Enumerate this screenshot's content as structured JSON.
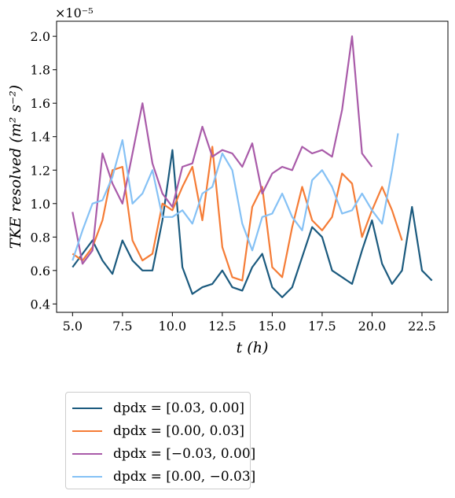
{
  "chart_data": {
    "type": "line",
    "title": "",
    "xlabel": "t (h)",
    "ylabel": "TKE resolved (m² s⁻²)",
    "y_multiplier_label": "×10⁻⁵",
    "xlim": [
      4.2,
      23.8
    ],
    "ylim": [
      0.35,
      2.09
    ],
    "xticks": [
      "5.0",
      "7.5",
      "10.0",
      "12.5",
      "15.0",
      "17.5",
      "20.0",
      "22.5"
    ],
    "yticks": [
      "0.4",
      "0.6",
      "0.8",
      "1.0",
      "1.2",
      "1.4",
      "1.6",
      "1.8",
      "2.0"
    ],
    "grid": false,
    "legend_placement": "below",
    "series": [
      {
        "name": "dpdx = [0.03, 0.00]",
        "color": "#1b5a7e",
        "x": [
          5.0,
          5.5,
          6.0,
          6.5,
          7.0,
          7.5,
          8.0,
          8.5,
          9.0,
          9.5,
          10.0,
          10.5,
          11.0,
          11.5,
          12.0,
          12.5,
          13.0,
          13.5,
          14.0,
          14.5,
          15.0,
          15.5,
          16.0,
          16.5,
          17.0,
          17.5,
          18.0,
          18.5,
          19.0,
          19.5,
          20.0,
          20.5,
          21.0,
          21.5,
          22.0,
          22.5,
          23.0
        ],
        "y": [
          0.62,
          0.7,
          0.78,
          0.66,
          0.58,
          0.78,
          0.66,
          0.6,
          0.6,
          0.9,
          1.32,
          0.62,
          0.46,
          0.5,
          0.52,
          0.6,
          0.5,
          0.48,
          0.62,
          0.7,
          0.5,
          0.44,
          0.5,
          0.68,
          0.86,
          0.8,
          0.6,
          0.56,
          0.52,
          0.72,
          0.9,
          0.64,
          0.52,
          0.6,
          0.98,
          0.6,
          0.54
        ]
      },
      {
        "name": "dpdx = [0.00, 0.03]",
        "color": "#f57c36",
        "x": [
          5.0,
          5.5,
          6.0,
          6.5,
          7.0,
          7.5,
          8.0,
          8.5,
          9.0,
          9.5,
          10.0,
          10.5,
          11.0,
          11.5,
          12.0,
          12.5,
          13.0,
          13.5,
          14.0,
          14.5,
          15.0,
          15.5,
          16.0,
          16.5,
          17.0,
          17.5,
          18.0,
          18.5,
          19.0,
          19.5,
          20.0,
          20.5,
          21.0,
          21.5
        ],
        "y": [
          0.7,
          0.66,
          0.74,
          0.9,
          1.2,
          1.22,
          0.78,
          0.66,
          0.7,
          1.0,
          0.96,
          1.1,
          1.22,
          0.9,
          1.34,
          0.74,
          0.56,
          0.54,
          0.98,
          1.1,
          0.62,
          0.56,
          0.86,
          1.1,
          0.9,
          0.84,
          0.92,
          1.18,
          1.12,
          0.8,
          0.96,
          1.1,
          0.96,
          0.78
        ]
      },
      {
        "name": "dpdx = [−0.03, 0.00]",
        "color": "#a95ba9",
        "x": [
          5.0,
          5.5,
          6.0,
          6.5,
          7.0,
          7.5,
          8.0,
          8.5,
          9.0,
          9.5,
          10.0,
          10.5,
          11.0,
          11.5,
          12.0,
          12.5,
          13.0,
          13.5,
          14.0,
          14.5,
          15.0,
          15.5,
          16.0,
          16.5,
          17.0,
          17.5,
          18.0,
          18.5,
          19.0,
          19.5,
          20.0
        ],
        "y": [
          0.95,
          0.64,
          0.72,
          1.3,
          1.12,
          1.0,
          1.3,
          1.6,
          1.24,
          1.06,
          0.98,
          1.22,
          1.24,
          1.46,
          1.28,
          1.32,
          1.3,
          1.22,
          1.36,
          1.06,
          1.18,
          1.22,
          1.2,
          1.34,
          1.3,
          1.32,
          1.28,
          1.56,
          2.0,
          1.3,
          1.22
        ]
      },
      {
        "name": "dpdx = [0.00, −0.03]",
        "color": "#85c1f5",
        "x": [
          5.0,
          5.5,
          6.0,
          6.5,
          7.0,
          7.5,
          8.0,
          8.5,
          9.0,
          9.5,
          10.0,
          10.5,
          11.0,
          11.5,
          12.0,
          12.5,
          13.0,
          13.5,
          14.0,
          14.5,
          15.0,
          15.5,
          16.0,
          16.5,
          17.0,
          17.5,
          18.0,
          18.5,
          19.0,
          19.5,
          20.0,
          20.5,
          21.0,
          21.3
        ],
        "y": [
          0.66,
          0.84,
          1.0,
          1.02,
          1.16,
          1.38,
          1.0,
          1.06,
          1.2,
          0.92,
          0.92,
          0.96,
          0.88,
          1.06,
          1.1,
          1.3,
          1.2,
          0.88,
          0.72,
          0.92,
          0.94,
          1.06,
          0.92,
          0.84,
          1.14,
          1.2,
          1.1,
          0.94,
          0.96,
          1.06,
          0.96,
          0.88,
          1.2,
          1.42
        ]
      }
    ]
  }
}
